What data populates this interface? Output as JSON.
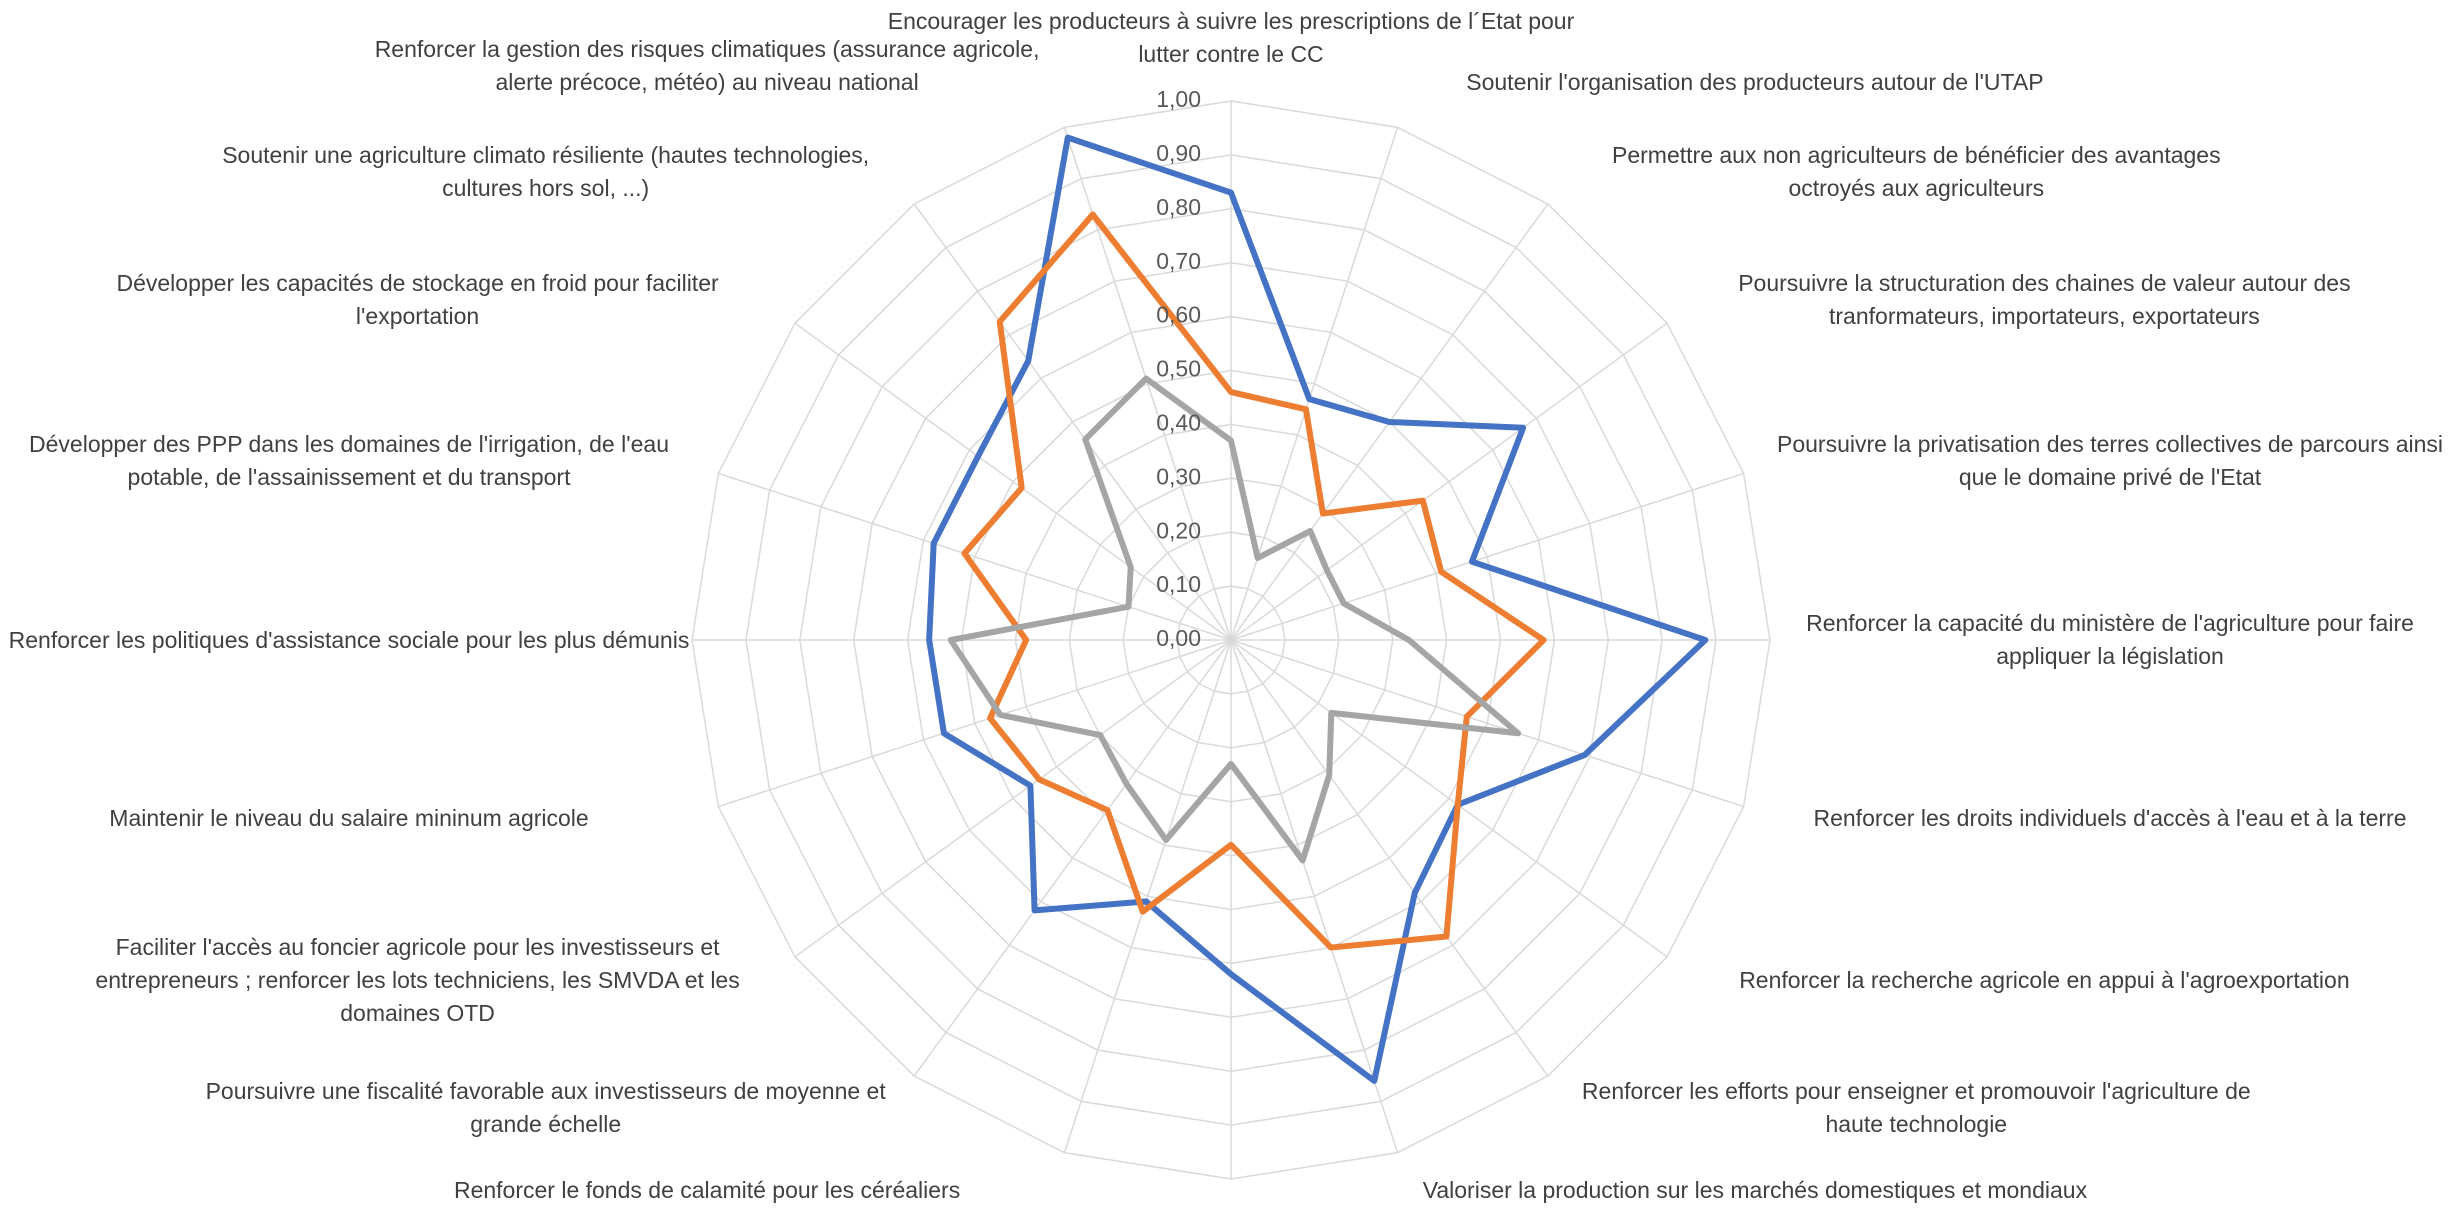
{
  "chart_data": {
    "type": "radar",
    "categories": [
      "Encourager les producteurs à suivre les prescriptions de l´Etat pour lutter contre le CC",
      "Soutenir l'organisation des producteurs autour de l'UTAP",
      "Permettre aux non agriculteurs de bénéficier des avantages octroyés aux agriculteurs",
      "Poursuivre la structuration des chaines de valeur autour des tranformateurs, importateurs, exportateurs",
      "Poursuivre la privatisation des terres collectives de parcours ainsi que le domaine privé de l'Etat",
      "Renforcer la capacité du ministère de l'agriculture pour faire appliquer la législation",
      "Renforcer les droits individuels d'accès à l'eau et à la terre",
      "Renforcer la recherche agricole en appui à l'agroexportation",
      "Renforcer les efforts pour enseigner et promouvoir l'agriculture de haute technologie",
      "Valoriser la production sur les marchés domestiques et mondiaux",
      null,
      "Renforcer le fonds de calamité pour les céréaliers",
      "Poursuivre une fiscalité favorable aux investisseurs de moyenne et grande échelle",
      "Faciliter l'accès au foncier agricole pour les investisseurs et entrepreneurs ; renforcer les lots techniciens, les SMVDA et les domaines OTD",
      "Maintenir le niveau du salaire mininum agricole",
      "Renforcer les politiques d'assistance sociale pour les plus démunis",
      "Développer des PPP dans les domaines de l'irrigation, de l'eau potable, de l'assainissement et du transport",
      "Développer les capacités de stockage en froid pour faciliter l'exportation",
      "Soutenir une agriculture climato résiliente (hautes technologies, cultures hors sol, ...)",
      "Renforcer la gestion des risques climatiques (assurance agricole, alerte précoce, météo) au niveau national"
    ],
    "series": [
      {
        "color": "#4472c4",
        "values": [
          0.83,
          0.47,
          0.5,
          0.67,
          0.47,
          0.88,
          0.69,
          0.52,
          0.58,
          0.86,
          0.62,
          0.51,
          0.62,
          0.46,
          0.56,
          0.56,
          0.58,
          0.58,
          0.64,
          0.98
        ]
      },
      {
        "color": "#ed7d31",
        "values": [
          0.46,
          0.45,
          0.29,
          0.44,
          0.41,
          0.58,
          0.46,
          0.52,
          0.68,
          0.6,
          0.38,
          0.53,
          0.39,
          0.44,
          0.47,
          0.38,
          0.52,
          0.48,
          0.73,
          0.83
        ]
      },
      {
        "color": "#a5a5a5",
        "values": [
          0.37,
          0.16,
          0.25,
          0.22,
          0.22,
          0.33,
          0.56,
          0.23,
          0.31,
          0.43,
          0.23,
          0.39,
          0.33,
          0.3,
          0.45,
          0.52,
          0.2,
          0.23,
          0.46,
          0.51
        ]
      }
    ],
    "rlim": [
      0,
      1
    ],
    "rticks": [
      {
        "value": 0,
        "label": "0,00"
      },
      {
        "value": 0.1,
        "label": "0,10"
      },
      {
        "value": 0.2,
        "label": "0,20"
      },
      {
        "value": 0.3,
        "label": "0,30"
      },
      {
        "value": 0.4,
        "label": "0,40"
      },
      {
        "value": 0.5,
        "label": "0,50"
      },
      {
        "value": 0.6,
        "label": "0,60"
      },
      {
        "value": 0.7,
        "label": "0,70"
      },
      {
        "value": 0.8,
        "label": "0,80"
      },
      {
        "value": 0.9,
        "label": "0,90"
      },
      {
        "value": 1,
        "label": "1,00"
      }
    ],
    "grid": true
  }
}
